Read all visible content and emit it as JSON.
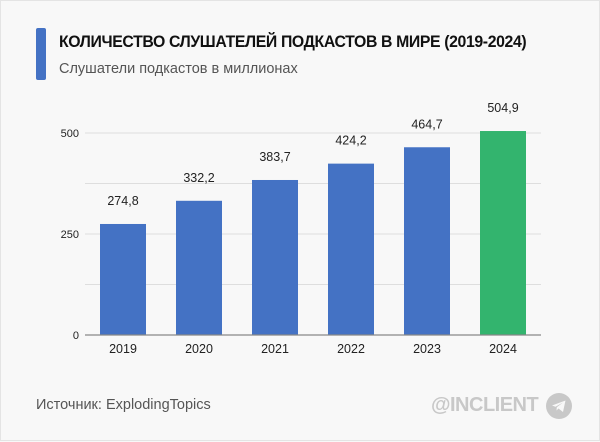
{
  "header": {
    "title": "КОЛИЧЕСТВО СЛУШАТЕЛЕЙ ПОДКАСТОВ В МИРЕ (2019-2024)",
    "subtitle": "Слушатели подкастов в миллионах",
    "accent_color": "#4472c4"
  },
  "footer": {
    "source": "Источник: ExplodingTopics",
    "brand": "@INCLIENT",
    "brand_icon": "telegram-icon"
  },
  "chart_data": {
    "type": "bar",
    "title": "КОЛИЧЕСТВО СЛУШАТЕЛЕЙ ПОДКАСТОВ В МИРЕ (2019-2024)",
    "subtitle": "Слушатели подкастов в миллионах",
    "categories": [
      "2019",
      "2020",
      "2021",
      "2022",
      "2023",
      "2024"
    ],
    "values": [
      274.8,
      332.2,
      383.7,
      424.2,
      464.7,
      504.9
    ],
    "labels": [
      "274,8",
      "332,2",
      "383,7",
      "424,2",
      "464,7",
      "504,9"
    ],
    "colors": [
      "#4472c4",
      "#4472c4",
      "#4472c4",
      "#4472c4",
      "#4472c4",
      "#33b46e"
    ],
    "yticks": [
      0,
      250,
      500
    ],
    "ylim": [
      0,
      500
    ],
    "grid": true
  }
}
